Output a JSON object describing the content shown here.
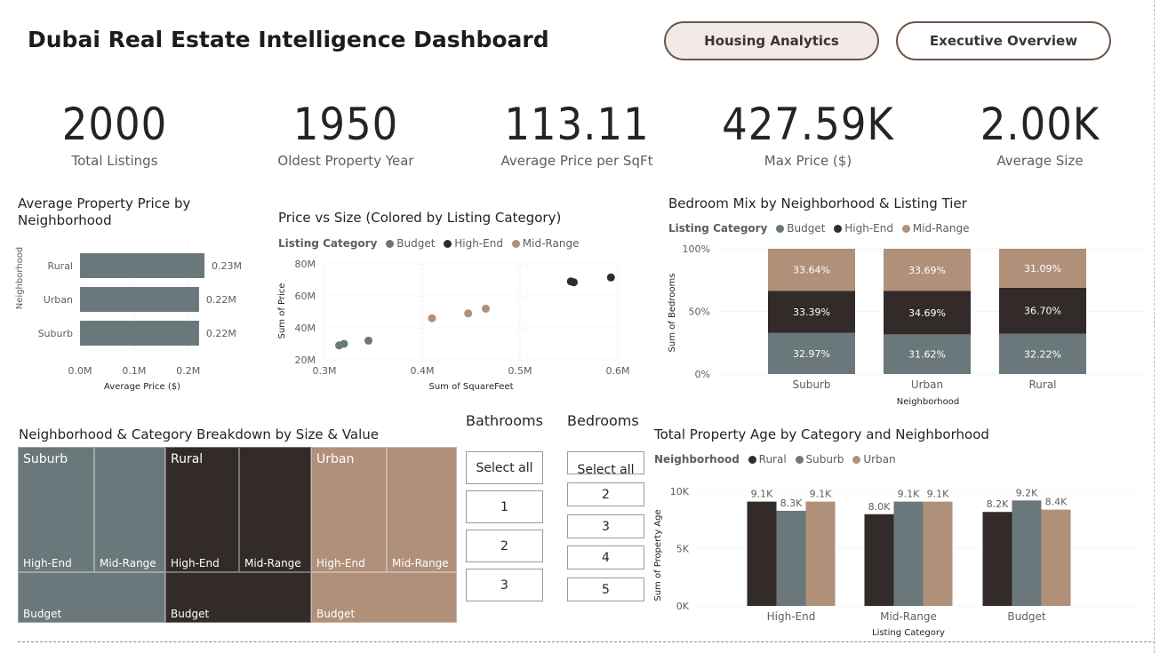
{
  "header": {
    "title": "Dubai Real Estate Intelligence Dashboard",
    "nav_buttons": [
      {
        "label": "Housing Analytics",
        "active": true
      },
      {
        "label": "Executive Overview",
        "active": false
      }
    ]
  },
  "kpis": [
    {
      "value": "2000",
      "label": "Total Listings"
    },
    {
      "value": "1950",
      "label": "Oldest Property Year"
    },
    {
      "value": "113.11",
      "label": "Average Price per SqFt"
    },
    {
      "value": "427.59K",
      "label": "Max Price ($)"
    },
    {
      "value": "2.00K",
      "label": "Average Size"
    }
  ],
  "colors": {
    "budget": "#6b787b",
    "high_end": "#332a2a",
    "mid_range": "#b09079",
    "nav_active_bg": "#f2eae6",
    "nav_border": "#6b5446"
  },
  "chart_data": [
    {
      "id": "avg-price-neighborhood",
      "type": "bar",
      "orientation": "horizontal",
      "title": "Average Property Price by Neighborhood",
      "xlabel": "Average Price ($)",
      "ylabel": "Neighborhood",
      "categories": [
        "Rural",
        "Urban",
        "Suburb"
      ],
      "values": [
        230000,
        220000,
        220000
      ],
      "data_labels": [
        "0.23M",
        "0.22M",
        "0.22M"
      ],
      "x_ticks": [
        "0.0M",
        "0.1M",
        "0.2M"
      ],
      "xlim": [
        0,
        230000
      ]
    },
    {
      "id": "price-vs-size",
      "type": "scatter",
      "title": "Price vs Size (Colored by Listing Category)",
      "legend_title": "Listing Category",
      "xlabel": "Sum of SquareFeet",
      "ylabel": "Sum of Price",
      "x_ticks": [
        "0.3M",
        "0.4M",
        "0.5M",
        "0.6M"
      ],
      "y_ticks": [
        "80M",
        "60M",
        "40M",
        "20M"
      ],
      "xlim": [
        300000,
        600000
      ],
      "ylim": [
        20000000,
        80000000
      ],
      "series": [
        {
          "name": "Budget",
          "points": [
            [
              315000,
              29000000
            ],
            [
              320000,
              30000000
            ],
            [
              345000,
              32000000
            ]
          ]
        },
        {
          "name": "High-End",
          "points": [
            [
              552000,
              69000000
            ],
            [
              555000,
              68500000
            ],
            [
              593000,
              71500000
            ]
          ]
        },
        {
          "name": "Mid-Range",
          "points": [
            [
              410000,
              46000000
            ],
            [
              447000,
              49000000
            ],
            [
              465000,
              52000000
            ]
          ]
        }
      ]
    },
    {
      "id": "bedroom-mix",
      "type": "bar",
      "stacked": "percent",
      "title": "Bedroom Mix by Neighborhood & Listing Tier",
      "legend_title": "Listing Category",
      "xlabel": "Neighborhood",
      "ylabel": "Sum of Bedrooms",
      "y_ticks": [
        "100%",
        "50%",
        "0%"
      ],
      "categories": [
        "Suburb",
        "Urban",
        "Rural"
      ],
      "series": [
        {
          "name": "Budget",
          "values": [
            32.97,
            31.62,
            32.22
          ],
          "labels": [
            "32.97%",
            "31.62%",
            "32.22%"
          ]
        },
        {
          "name": "High-End",
          "values": [
            33.39,
            34.69,
            36.7
          ],
          "labels": [
            "33.39%",
            "34.69%",
            "36.70%"
          ]
        },
        {
          "name": "Mid-Range",
          "values": [
            33.64,
            33.69,
            31.09
          ],
          "labels": [
            "33.64%",
            "33.69%",
            "31.09%"
          ]
        }
      ]
    },
    {
      "id": "treemap",
      "type": "treemap",
      "title": "Neighborhood & Category Breakdown by Size & Value",
      "groups": [
        {
          "name": "Suburb",
          "children": [
            "High-End",
            "Mid-Range",
            "Budget"
          ]
        },
        {
          "name": "Rural",
          "children": [
            "High-End",
            "Mid-Range",
            "Budget"
          ]
        },
        {
          "name": "Urban",
          "children": [
            "High-End",
            "Mid-Range",
            "Budget"
          ]
        }
      ]
    },
    {
      "id": "property-age",
      "type": "bar",
      "title": "Total Property Age by Category and Neighborhood",
      "legend_title": "Neighborhood",
      "xlabel": "Listing Category",
      "ylabel": "Sum of Property Age",
      "y_ticks": [
        "10K",
        "5K",
        "0K"
      ],
      "ylim": [
        0,
        10000
      ],
      "categories": [
        "High-End",
        "Mid-Range",
        "Budget"
      ],
      "series": [
        {
          "name": "Rural",
          "values": [
            9100,
            8000,
            8200
          ],
          "labels": [
            "9.1K",
            "8.0K",
            "8.2K"
          ]
        },
        {
          "name": "Suburb",
          "values": [
            8300,
            9100,
            9200
          ],
          "labels": [
            "8.3K",
            "9.1K",
            "9.2K"
          ]
        },
        {
          "name": "Urban",
          "values": [
            9100,
            9100,
            8400
          ],
          "labels": [
            "9.1K",
            "9.1K",
            "8.4K"
          ]
        }
      ]
    }
  ],
  "slicers": {
    "bathrooms": {
      "title": "Bathrooms",
      "options": [
        "Select all",
        "1",
        "2",
        "3"
      ]
    },
    "bedrooms": {
      "title": "Bedrooms",
      "options": [
        "Select all",
        "2",
        "3",
        "4",
        "5"
      ]
    }
  }
}
